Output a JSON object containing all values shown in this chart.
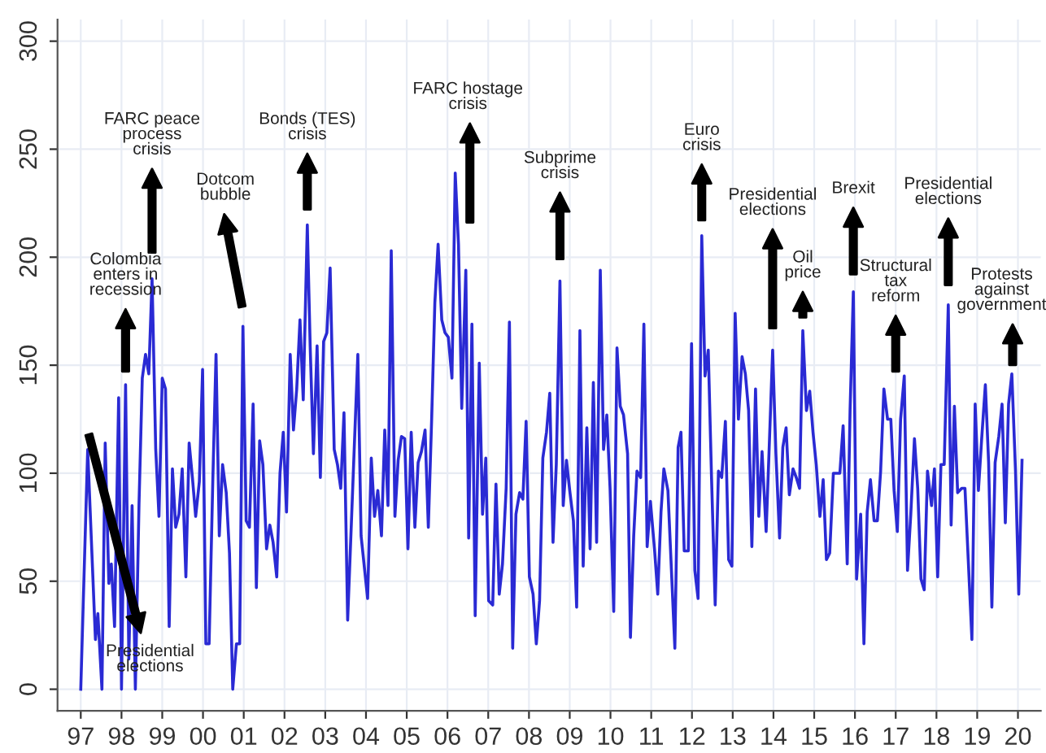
{
  "chart_data": {
    "type": "line",
    "xlim": [
      1996.43,
      2020.56
    ],
    "ylim": [
      -10,
      310
    ],
    "xticks": [
      {
        "value": 1997,
        "label": "97"
      },
      {
        "value": 1998,
        "label": "98"
      },
      {
        "value": 1999,
        "label": "99"
      },
      {
        "value": 2000,
        "label": "00"
      },
      {
        "value": 2001,
        "label": "01"
      },
      {
        "value": 2002,
        "label": "02"
      },
      {
        "value": 2003,
        "label": "03"
      },
      {
        "value": 2004,
        "label": "04"
      },
      {
        "value": 2005,
        "label": "05"
      },
      {
        "value": 2006,
        "label": "06"
      },
      {
        "value": 2007,
        "label": "07"
      },
      {
        "value": 2008,
        "label": "08"
      },
      {
        "value": 2009,
        "label": "09"
      },
      {
        "value": 2010,
        "label": "10"
      },
      {
        "value": 2011,
        "label": "11"
      },
      {
        "value": 2012,
        "label": "12"
      },
      {
        "value": 2013,
        "label": "13"
      },
      {
        "value": 2014,
        "label": "14"
      },
      {
        "value": 2015,
        "label": "15"
      },
      {
        "value": 2016,
        "label": "16"
      },
      {
        "value": 2017,
        "label": "17"
      },
      {
        "value": 2018,
        "label": "18"
      },
      {
        "value": 2019,
        "label": "19"
      },
      {
        "value": 2020,
        "label": "20"
      }
    ],
    "yticks": [
      0,
      50,
      100,
      150,
      200,
      250,
      300
    ],
    "grid": true,
    "marker": "none",
    "line_style": "solid",
    "series": [
      {
        "color": "#2a2ad4",
        "x": [
          1997.0,
          1997.17,
          1997.36,
          1997.42,
          1997.52,
          1997.6,
          1997.69,
          1997.75,
          1997.83,
          1997.93,
          1998.0,
          1998.1,
          1998.18,
          1998.26,
          1998.34,
          1998.43,
          1998.51,
          1998.59,
          1998.67,
          1998.75,
          1998.84,
          1998.92,
          1999.0,
          1999.08,
          1999.17,
          1999.25,
          1999.33,
          1999.41,
          1999.49,
          1999.58,
          1999.66,
          1999.74,
          1999.82,
          1999.91,
          1999.99,
          2000.07,
          2000.15,
          2000.24,
          2000.32,
          2000.4,
          2000.48,
          2000.57,
          2000.65,
          2000.73,
          2000.82,
          2000.9,
          2000.98,
          2001.06,
          2001.14,
          2001.23,
          2001.31,
          2001.39,
          2001.47,
          2001.56,
          2001.64,
          2001.72,
          2001.81,
          2001.89,
          2001.97,
          2002.05,
          2002.14,
          2002.22,
          2002.3,
          2002.38,
          2002.46,
          2002.56,
          2002.63,
          2002.71,
          2002.8,
          2002.88,
          2002.96,
          2003.04,
          2003.12,
          2003.22,
          2003.3,
          2003.38,
          2003.46,
          2003.55,
          2003.8,
          2003.88,
          2004.04,
          2004.13,
          2004.21,
          2004.29,
          2004.38,
          2004.46,
          2004.54,
          2004.62,
          2004.71,
          2004.79,
          2004.87,
          2004.95,
          2005.03,
          2005.11,
          2005.2,
          2005.28,
          2005.36,
          2005.45,
          2005.53,
          2005.61,
          2005.69,
          2005.77,
          2005.86,
          2005.94,
          2006.02,
          2006.11,
          2006.19,
          2006.27,
          2006.35,
          2006.45,
          2006.52,
          2006.6,
          2006.68,
          2006.78,
          2006.86,
          2006.94,
          2007.01,
          2007.11,
          2007.19,
          2007.27,
          2007.35,
          2007.44,
          2007.52,
          2007.6,
          2007.68,
          2007.77,
          2007.85,
          2007.93,
          2008.01,
          2008.1,
          2008.18,
          2008.26,
          2008.34,
          2008.43,
          2008.51,
          2008.59,
          2008.67,
          2008.76,
          2008.84,
          2008.92,
          2009.0,
          2009.09,
          2009.17,
          2009.25,
          2009.33,
          2009.42,
          2009.5,
          2009.58,
          2009.66,
          2009.75,
          2009.83,
          2009.91,
          2009.99,
          2010.08,
          2010.16,
          2010.24,
          2010.32,
          2010.42,
          2010.49,
          2010.57,
          2010.65,
          2010.74,
          2010.82,
          2010.9,
          2010.98,
          2011.08,
          2011.16,
          2011.24,
          2011.31,
          2011.41,
          2011.58,
          2011.66,
          2011.73,
          2011.81,
          2011.91,
          2011.99,
          2012.07,
          2012.15,
          2012.24,
          2012.32,
          2012.4,
          2012.48,
          2012.57,
          2012.65,
          2012.73,
          2012.82,
          2012.9,
          2012.98,
          2013.06,
          2013.14,
          2013.23,
          2013.31,
          2013.39,
          2013.47,
          2013.56,
          2013.64,
          2013.72,
          2013.82,
          2013.89,
          2013.98,
          2014.06,
          2014.15,
          2014.23,
          2014.31,
          2014.39,
          2014.48,
          2014.56,
          2014.64,
          2014.72,
          2014.81,
          2014.89,
          2014.97,
          2015.05,
          2015.14,
          2015.22,
          2015.3,
          2015.38,
          2015.47,
          2015.55,
          2015.63,
          2015.71,
          2015.81,
          2015.88,
          2015.96,
          2016.04,
          2016.14,
          2016.22,
          2016.3,
          2016.38,
          2016.47,
          2016.55,
          2016.63,
          2016.71,
          2016.8,
          2016.88,
          2016.96,
          2017.04,
          2017.12,
          2017.21,
          2017.29,
          2017.37,
          2017.46,
          2017.54,
          2017.62,
          2017.7,
          2017.78,
          2017.88,
          2017.95,
          2018.03,
          2018.11,
          2018.19,
          2018.29,
          2018.36,
          2018.44,
          2018.52,
          2018.62,
          2018.7,
          2018.78,
          2018.87,
          2018.95,
          2019.03,
          2019.11,
          2019.2,
          2019.28,
          2019.36,
          2019.44,
          2019.53,
          2019.61,
          2019.69,
          2019.77,
          2019.85,
          2019.94,
          2020.02,
          2020.1
        ],
        "values": [
          0,
          111,
          23,
          35,
          0,
          114,
          49,
          58,
          29,
          135,
          0,
          141,
          14,
          85,
          0,
          86,
          144,
          155,
          146,
          190,
          111,
          80,
          144,
          139,
          29,
          102,
          75,
          81,
          102,
          52,
          114,
          98,
          80,
          96,
          148,
          21,
          21,
          96,
          155,
          71,
          104,
          91,
          63,
          0,
          21,
          21,
          168,
          78,
          75,
          132,
          47,
          115,
          104,
          65,
          76,
          68,
          52,
          100,
          119,
          82,
          155,
          120,
          139,
          171,
          134,
          215,
          159,
          109,
          159,
          98,
          161,
          165,
          195,
          111,
          104,
          93,
          128,
          32,
          155,
          71,
          42,
          107,
          80,
          92,
          71,
          120,
          85,
          203,
          80,
          106,
          117,
          116,
          65,
          119,
          75,
          105,
          110,
          120,
          75,
          124,
          179,
          206,
          171,
          165,
          163,
          144,
          239,
          206,
          130,
          194,
          70,
          169,
          34,
          151,
          81,
          107,
          41,
          39,
          95,
          44,
          58,
          93,
          170,
          19,
          81,
          91,
          88,
          124,
          52,
          44,
          21,
          41,
          107,
          119,
          137,
          68,
          104,
          189,
          85,
          106,
          92,
          78,
          38,
          166,
          57,
          121,
          65,
          142,
          68,
          194,
          111,
          127,
          93,
          36,
          158,
          131,
          127,
          109,
          24,
          71,
          101,
          98,
          169,
          66,
          87,
          65,
          44,
          82,
          102,
          92,
          19,
          112,
          119,
          64,
          64,
          160,
          55,
          42,
          210,
          145,
          157,
          98,
          39,
          101,
          98,
          124,
          60,
          57,
          174,
          125,
          154,
          146,
          129,
          66,
          139,
          80,
          110,
          73,
          109,
          157,
          109,
          70,
          112,
          121,
          90,
          102,
          98,
          93,
          166,
          129,
          138,
          119,
          104,
          80,
          97,
          60,
          63,
          100,
          100,
          100,
          122,
          58,
          129,
          184,
          51,
          81,
          21,
          82,
          97,
          78,
          78,
          101,
          139,
          125,
          125,
          92,
          73,
          125,
          145,
          55,
          81,
          116,
          93,
          51,
          46,
          101,
          85,
          102,
          52,
          104,
          104,
          178,
          76,
          131,
          91,
          93,
          93,
          60,
          23,
          132,
          92,
          116,
          141,
          105,
          38,
          105,
          117,
          132,
          77,
          132,
          146,
          101,
          44,
          106
        ]
      }
    ],
    "annotations": [
      "Presidential\nelections",
      "Colombia\nenters in\nrecession",
      "FARC peace\nprocess\ncrisis",
      "Dotcom\nbubble",
      "Bonds (TES)\ncrisis",
      "FARC hostage\ncrisis",
      "Subprime\ncrisis",
      "Euro\ncrisis",
      "Presidential\nelections",
      "Oil\nprice",
      "Brexit",
      "Structural\ntax\nreform",
      "Presidential\nelections",
      "Protests\nagainst\ngovernment"
    ]
  }
}
